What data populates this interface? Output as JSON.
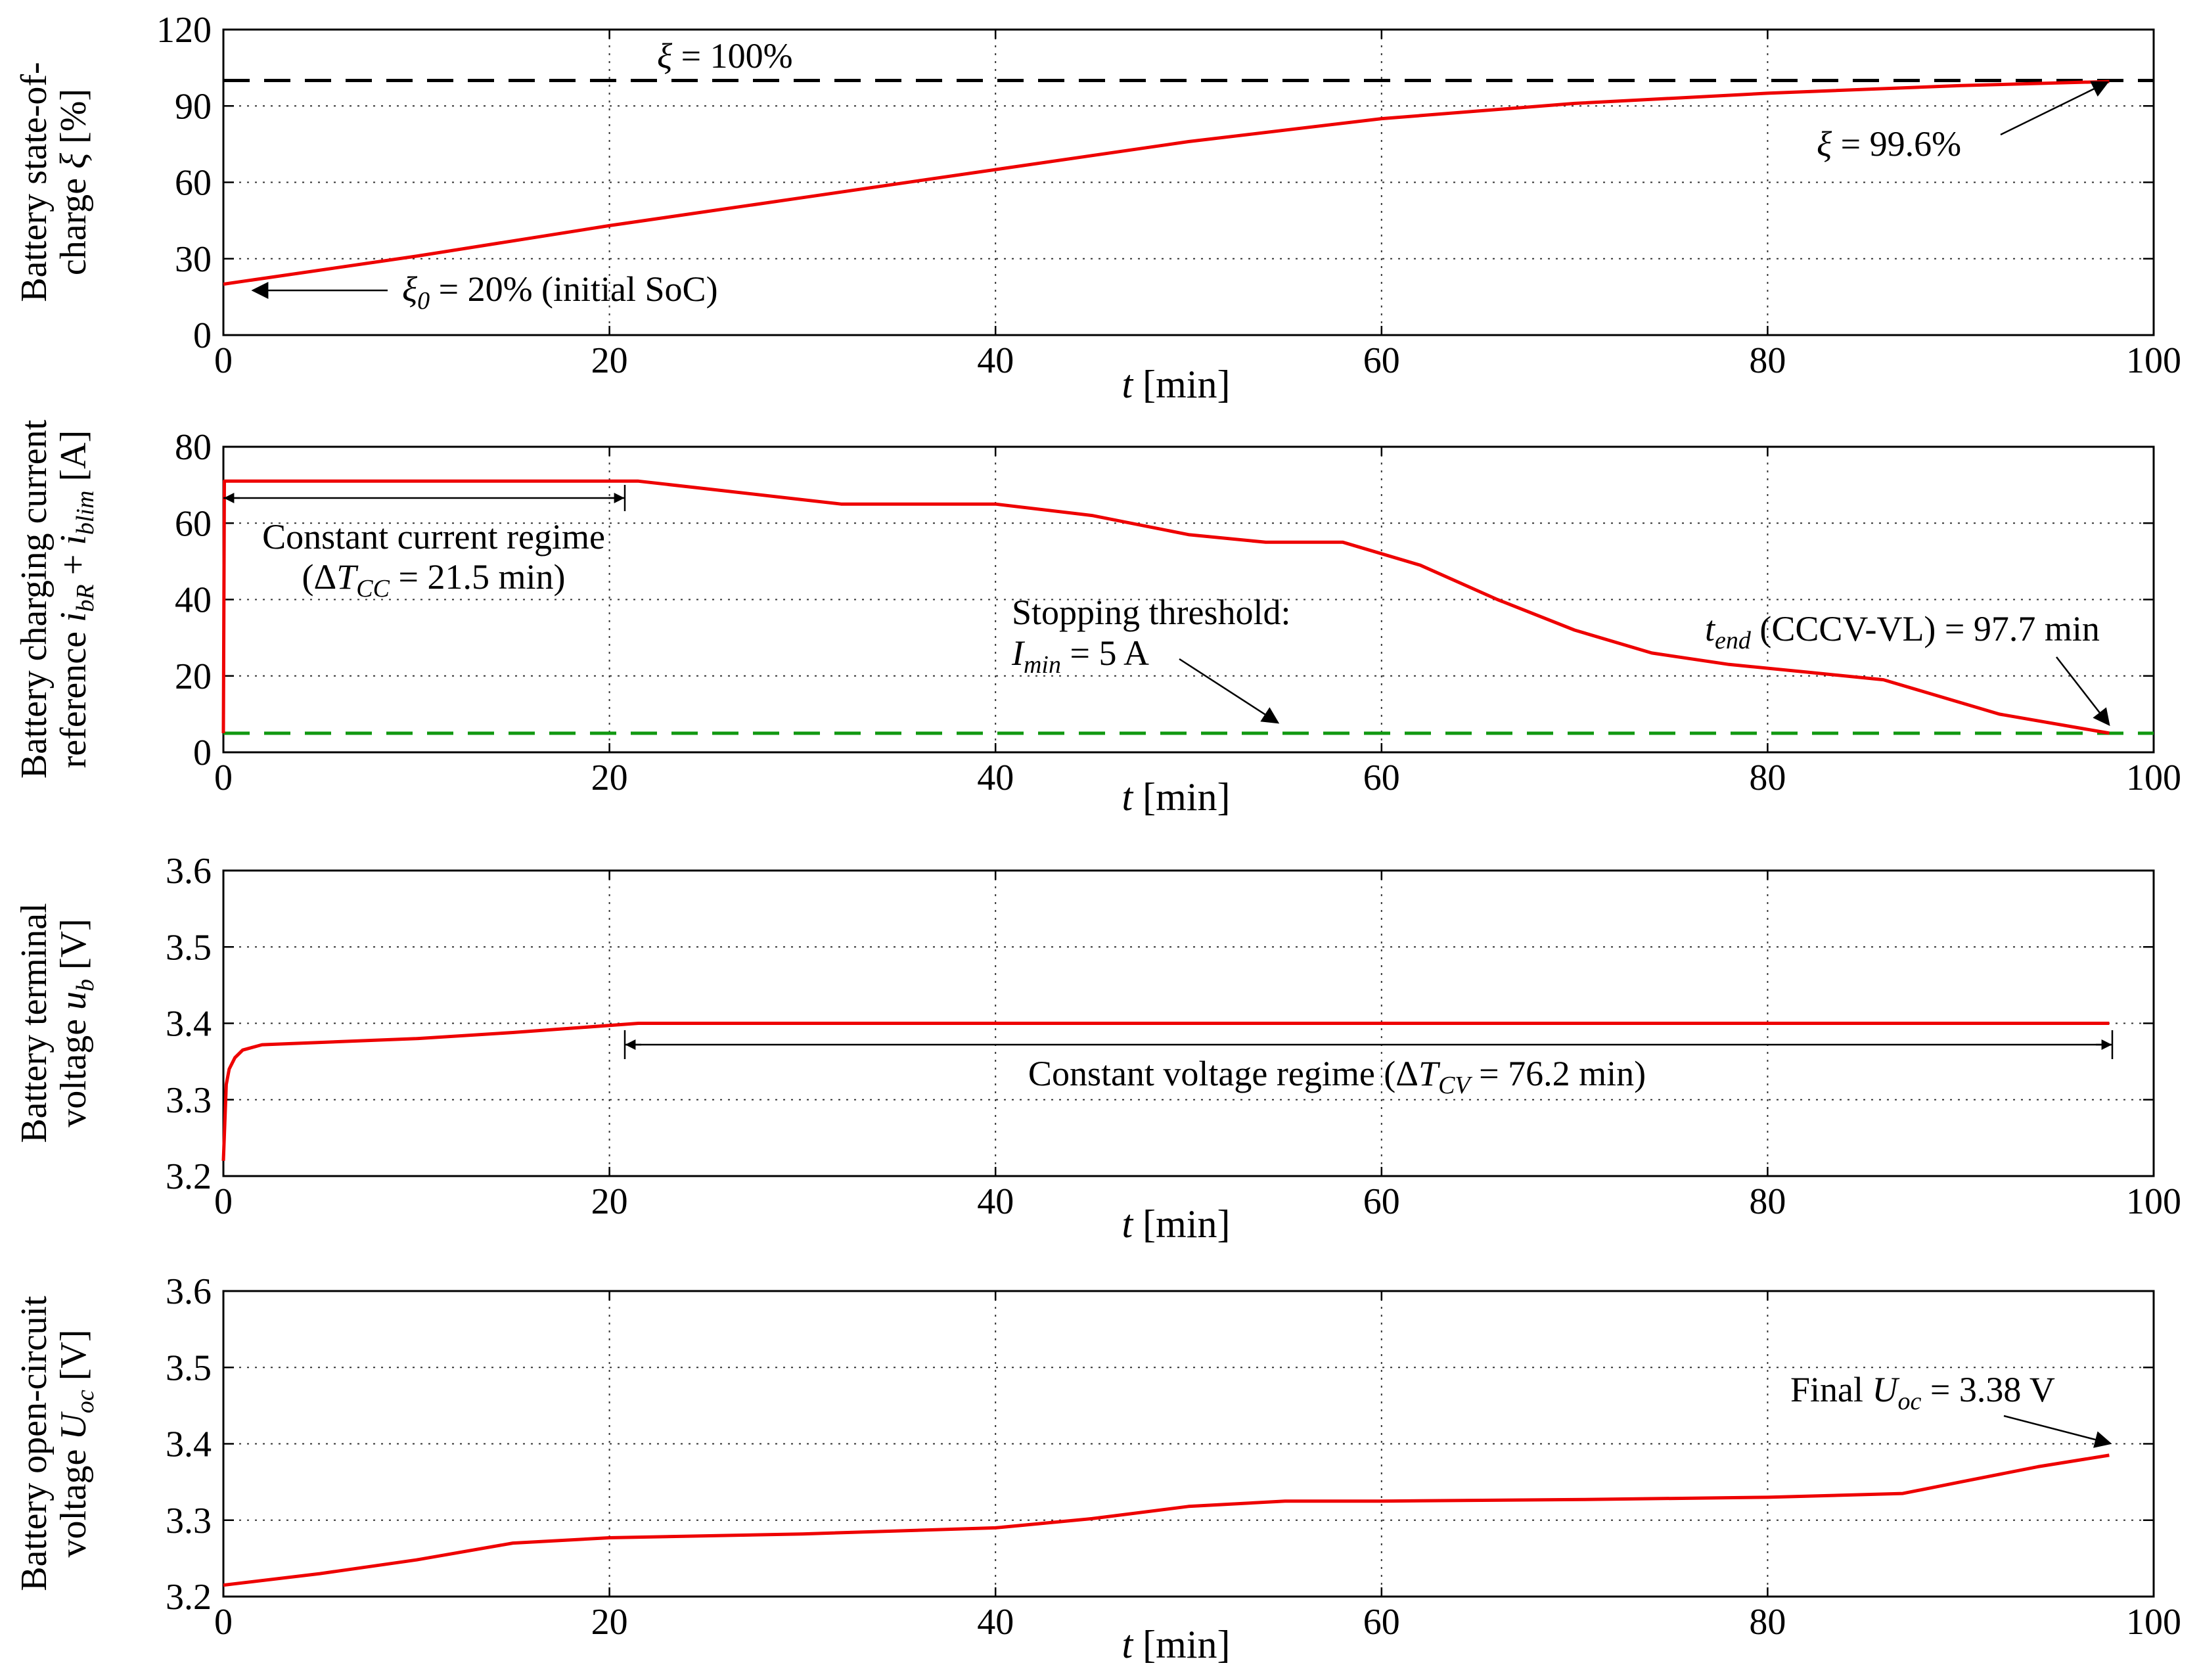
{
  "chart_data": [
    {
      "type": "line",
      "xlabel": {
        "sym": "t",
        "unit": " [min]"
      },
      "ylabel": {
        "line1": "Battery state-of-",
        "line2_text": "charge ",
        "line2_sym": "ξ",
        "line2_unit": " [%]"
      },
      "xlim": [
        0,
        100
      ],
      "ylim": [
        0,
        120
      ],
      "xticks": [
        "0",
        "20",
        "40",
        "60",
        "80",
        "100"
      ],
      "yticks": [
        "0",
        "30",
        "60",
        "90",
        "120"
      ],
      "grid": true,
      "series": [
        {
          "color": "#ee0000",
          "x": [
            0,
            10,
            20,
            30,
            40,
            50,
            60,
            70,
            80,
            90,
            97.7
          ],
          "y": [
            20,
            31,
            43,
            54,
            65,
            76,
            85,
            91,
            95,
            98,
            99.6
          ]
        }
      ],
      "reference_lines": [
        {
          "y": 100,
          "color": "#000000"
        }
      ],
      "annotations": {
        "top_label": {
          "sym": "ξ",
          "text": " = 100%"
        },
        "end_label": {
          "sym": "ξ",
          "text": " = 99.6%"
        },
        "init_label": {
          "sym": "ξ",
          "sub": "0",
          "text": " = 20% (initial SoC)"
        }
      }
    },
    {
      "type": "line",
      "xlabel": {
        "sym": "t",
        "unit": " [min]"
      },
      "ylabel": {
        "line1": "Battery charging current",
        "line2_text": "reference ",
        "sym1": "i",
        "sub1": "bR",
        "plus": " + ",
        "sym2": "i",
        "sub2": "blim",
        "unit": " [A]"
      },
      "xlim": [
        0,
        100
      ],
      "ylim": [
        0,
        80
      ],
      "xticks": [
        "0",
        "20",
        "40",
        "60",
        "80",
        "100"
      ],
      "yticks": [
        "0",
        "20",
        "40",
        "60",
        "80"
      ],
      "grid": true,
      "series": [
        {
          "color": "#ee0000",
          "x": [
            0,
            0.05,
            21.5,
            25,
            32,
            40,
            45,
            50,
            54,
            58,
            62,
            66,
            70,
            74,
            78,
            82,
            86,
            88,
            92,
            97.7
          ],
          "y": [
            5,
            71,
            71,
            69,
            65,
            65,
            62,
            57,
            55,
            55,
            49,
            40,
            32,
            26,
            23,
            21,
            19,
            16,
            10,
            5
          ]
        }
      ],
      "reference_lines": [
        {
          "y": 5,
          "color": "#119911"
        }
      ],
      "annotations": {
        "cc_line1": "Constant current regime",
        "cc_line2": {
          "pre": "(Δ",
          "sym": "T",
          "sub": "CC",
          "text": " = 21.5 min)"
        },
        "stop_line1": "Stopping threshold:",
        "stop_line2": {
          "sym": "I",
          "sub": "min",
          "text": " = 5 A"
        },
        "tend": {
          "sym": "t",
          "sub": "end",
          "text": " (CCCV-VL) = 97.7 min"
        }
      }
    },
    {
      "type": "line",
      "xlabel": {
        "sym": "t",
        "unit": " [min]"
      },
      "ylabel": {
        "line1": "Battery terminal",
        "line2_text": "voltage ",
        "sym": "u",
        "sub": "b",
        "unit": " [V]"
      },
      "xlim": [
        0,
        100
      ],
      "ylim": [
        3.2,
        3.6
      ],
      "xticks": [
        "0",
        "20",
        "40",
        "60",
        "80",
        "100"
      ],
      "yticks": [
        "3.2",
        "3.3",
        "3.4",
        "3.5",
        "3.6"
      ],
      "grid": true,
      "series": [
        {
          "color": "#ee0000",
          "x": [
            0,
            0.15,
            0.3,
            0.6,
            1,
            2,
            5,
            10,
            15,
            21.5,
            97.7
          ],
          "y": [
            3.22,
            3.32,
            3.34,
            3.355,
            3.365,
            3.372,
            3.375,
            3.38,
            3.388,
            3.4,
            3.4
          ]
        }
      ],
      "annotations": {
        "cv": {
          "pre": "Constant voltage regime (Δ",
          "sym": "T",
          "sub": "CV",
          "text": " = 76.2 min)"
        }
      }
    },
    {
      "type": "line",
      "xlabel": {
        "sym": "t",
        "unit": " [min]"
      },
      "ylabel": {
        "line1": "Battery open-circuit",
        "line2_text": "voltage ",
        "sym": "U",
        "sub": "oc",
        "unit": " [V]"
      },
      "xlim": [
        0,
        100
      ],
      "ylim": [
        3.2,
        3.6
      ],
      "xticks": [
        "0",
        "20",
        "40",
        "60",
        "80",
        "100"
      ],
      "yticks": [
        "3.2",
        "3.3",
        "3.4",
        "3.5",
        "3.6"
      ],
      "grid": true,
      "series": [
        {
          "color": "#ee0000",
          "x": [
            0,
            5,
            10,
            15,
            20,
            30,
            40,
            45,
            50,
            55,
            60,
            70,
            80,
            87,
            90,
            94,
            97.7
          ],
          "y": [
            3.215,
            3.23,
            3.248,
            3.27,
            3.277,
            3.282,
            3.29,
            3.302,
            3.318,
            3.325,
            3.325,
            3.327,
            3.33,
            3.335,
            3.35,
            3.37,
            3.385
          ]
        }
      ],
      "annotations": {
        "final": {
          "pre": "Final ",
          "sym": "U",
          "sub": "oc",
          "text": " = 3.38 V"
        }
      }
    }
  ]
}
